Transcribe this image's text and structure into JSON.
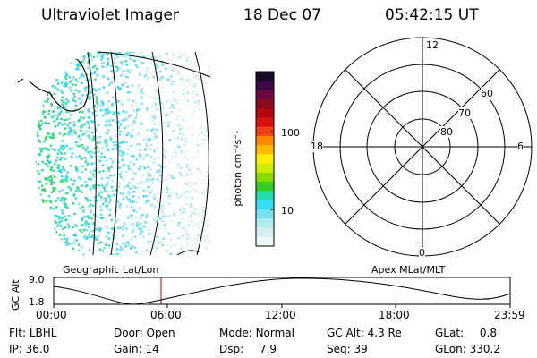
{
  "header": {
    "title": "Ultraviolet Imager",
    "date": "18 Dec 07",
    "time": "05:42:15 UT"
  },
  "colorbar": {
    "unit_label": "photon cm⁻²s⁻¹",
    "ticks": [
      "100",
      "10"
    ],
    "colors": [
      "#1a0a2a",
      "#3a0a45",
      "#6a0a40",
      "#8a0a20",
      "#b00a10",
      "#d81010",
      "#f04018",
      "#ff8800",
      "#ffbb00",
      "#ffee00",
      "#ccee00",
      "#88dd00",
      "#33cc22",
      "#22ddaa",
      "#33ddee",
      "#77e0ee",
      "#aeeaee",
      "#d6f0f0",
      "#ecf6f6"
    ]
  },
  "polar_plot": {
    "mlt_labels": {
      "top": "12",
      "left": "18",
      "right": "6",
      "bottom": "0"
    },
    "lat_labels": [
      "60",
      "70",
      "80"
    ]
  },
  "timeline": {
    "left_caption": "Geographic Lat/Lon",
    "right_caption": "Apex MLat/MLT",
    "axis_title": "GC Alt",
    "y_ticks": [
      "9.0",
      "1.8"
    ],
    "x_ticks": [
      "00:00",
      "06:00",
      "12:00",
      "18:00",
      "23:59"
    ]
  },
  "info_rows": [
    [
      {
        "label": "Flt:",
        "value": "LBHL"
      },
      {
        "label": "Door:",
        "value": "Open"
      },
      {
        "label": "Mode:",
        "value": "Normal"
      },
      {
        "label": "GC Alt:",
        "value": "4.3 Re"
      },
      {
        "label": "GLat:",
        "value": "0.8"
      }
    ],
    [
      {
        "label": "IP:",
        "value": "36.0"
      },
      {
        "label": "Gain:",
        "value": "14"
      },
      {
        "label": "Dsp:",
        "value": "7.9"
      },
      {
        "label": "Seq:",
        "value": "39"
      },
      {
        "label": "GLon:",
        "value": "330.2"
      }
    ]
  ]
}
